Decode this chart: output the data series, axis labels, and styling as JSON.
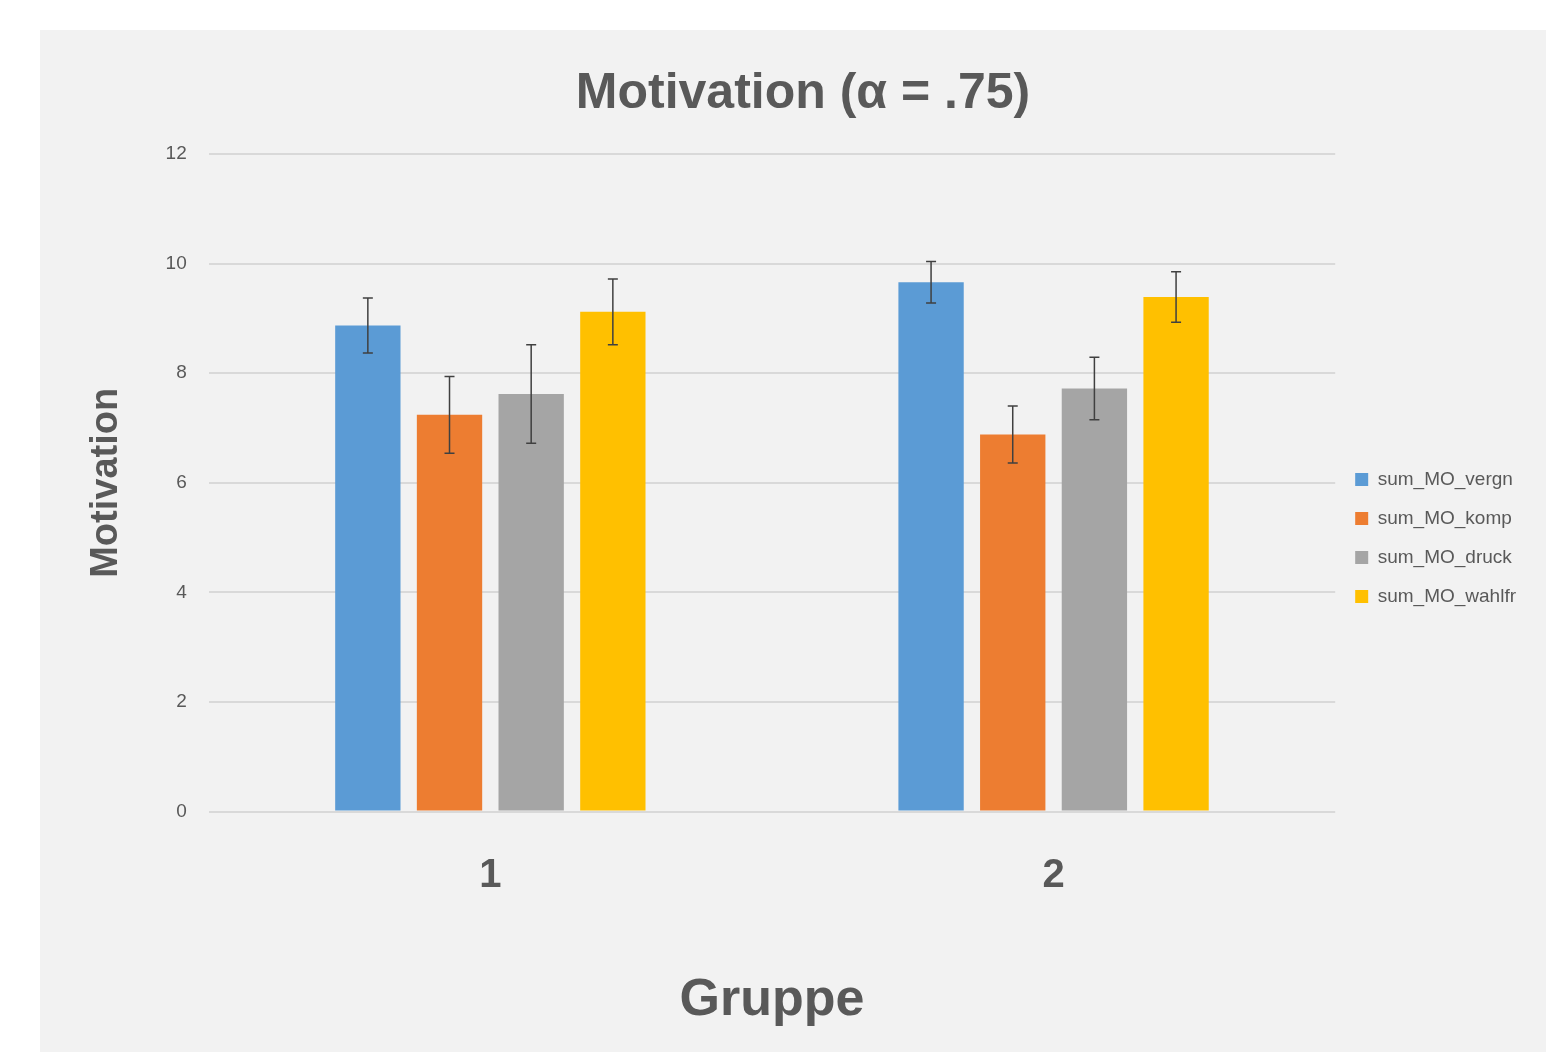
{
  "chart_data": {
    "type": "bar",
    "title": "Motivation (α = .75)",
    "xlabel": "Gruppe",
    "ylabel": "Motivation",
    "categories": [
      "1",
      "2"
    ],
    "series": [
      {
        "name": "sum_MO_vergn",
        "color": "#5b9bd5",
        "values": [
          8.87,
          9.66
        ],
        "errors": [
          0.5,
          0.38
        ]
      },
      {
        "name": "sum_MO_komp",
        "color": "#ed7d31",
        "values": [
          7.24,
          6.88
        ],
        "errors": [
          0.7,
          0.52
        ]
      },
      {
        "name": "sum_MO_druck",
        "color": "#a5a5a5",
        "values": [
          7.62,
          7.72
        ],
        "errors": [
          0.9,
          0.57
        ]
      },
      {
        "name": "sum_MO_wahlfr",
        "color": "#ffc000",
        "values": [
          9.12,
          9.39
        ],
        "errors": [
          0.6,
          0.46
        ]
      }
    ],
    "ylim": [
      0,
      12
    ],
    "yticks": [
      0,
      2,
      4,
      6,
      8,
      10,
      12
    ],
    "grid": "y",
    "legend": "right"
  }
}
